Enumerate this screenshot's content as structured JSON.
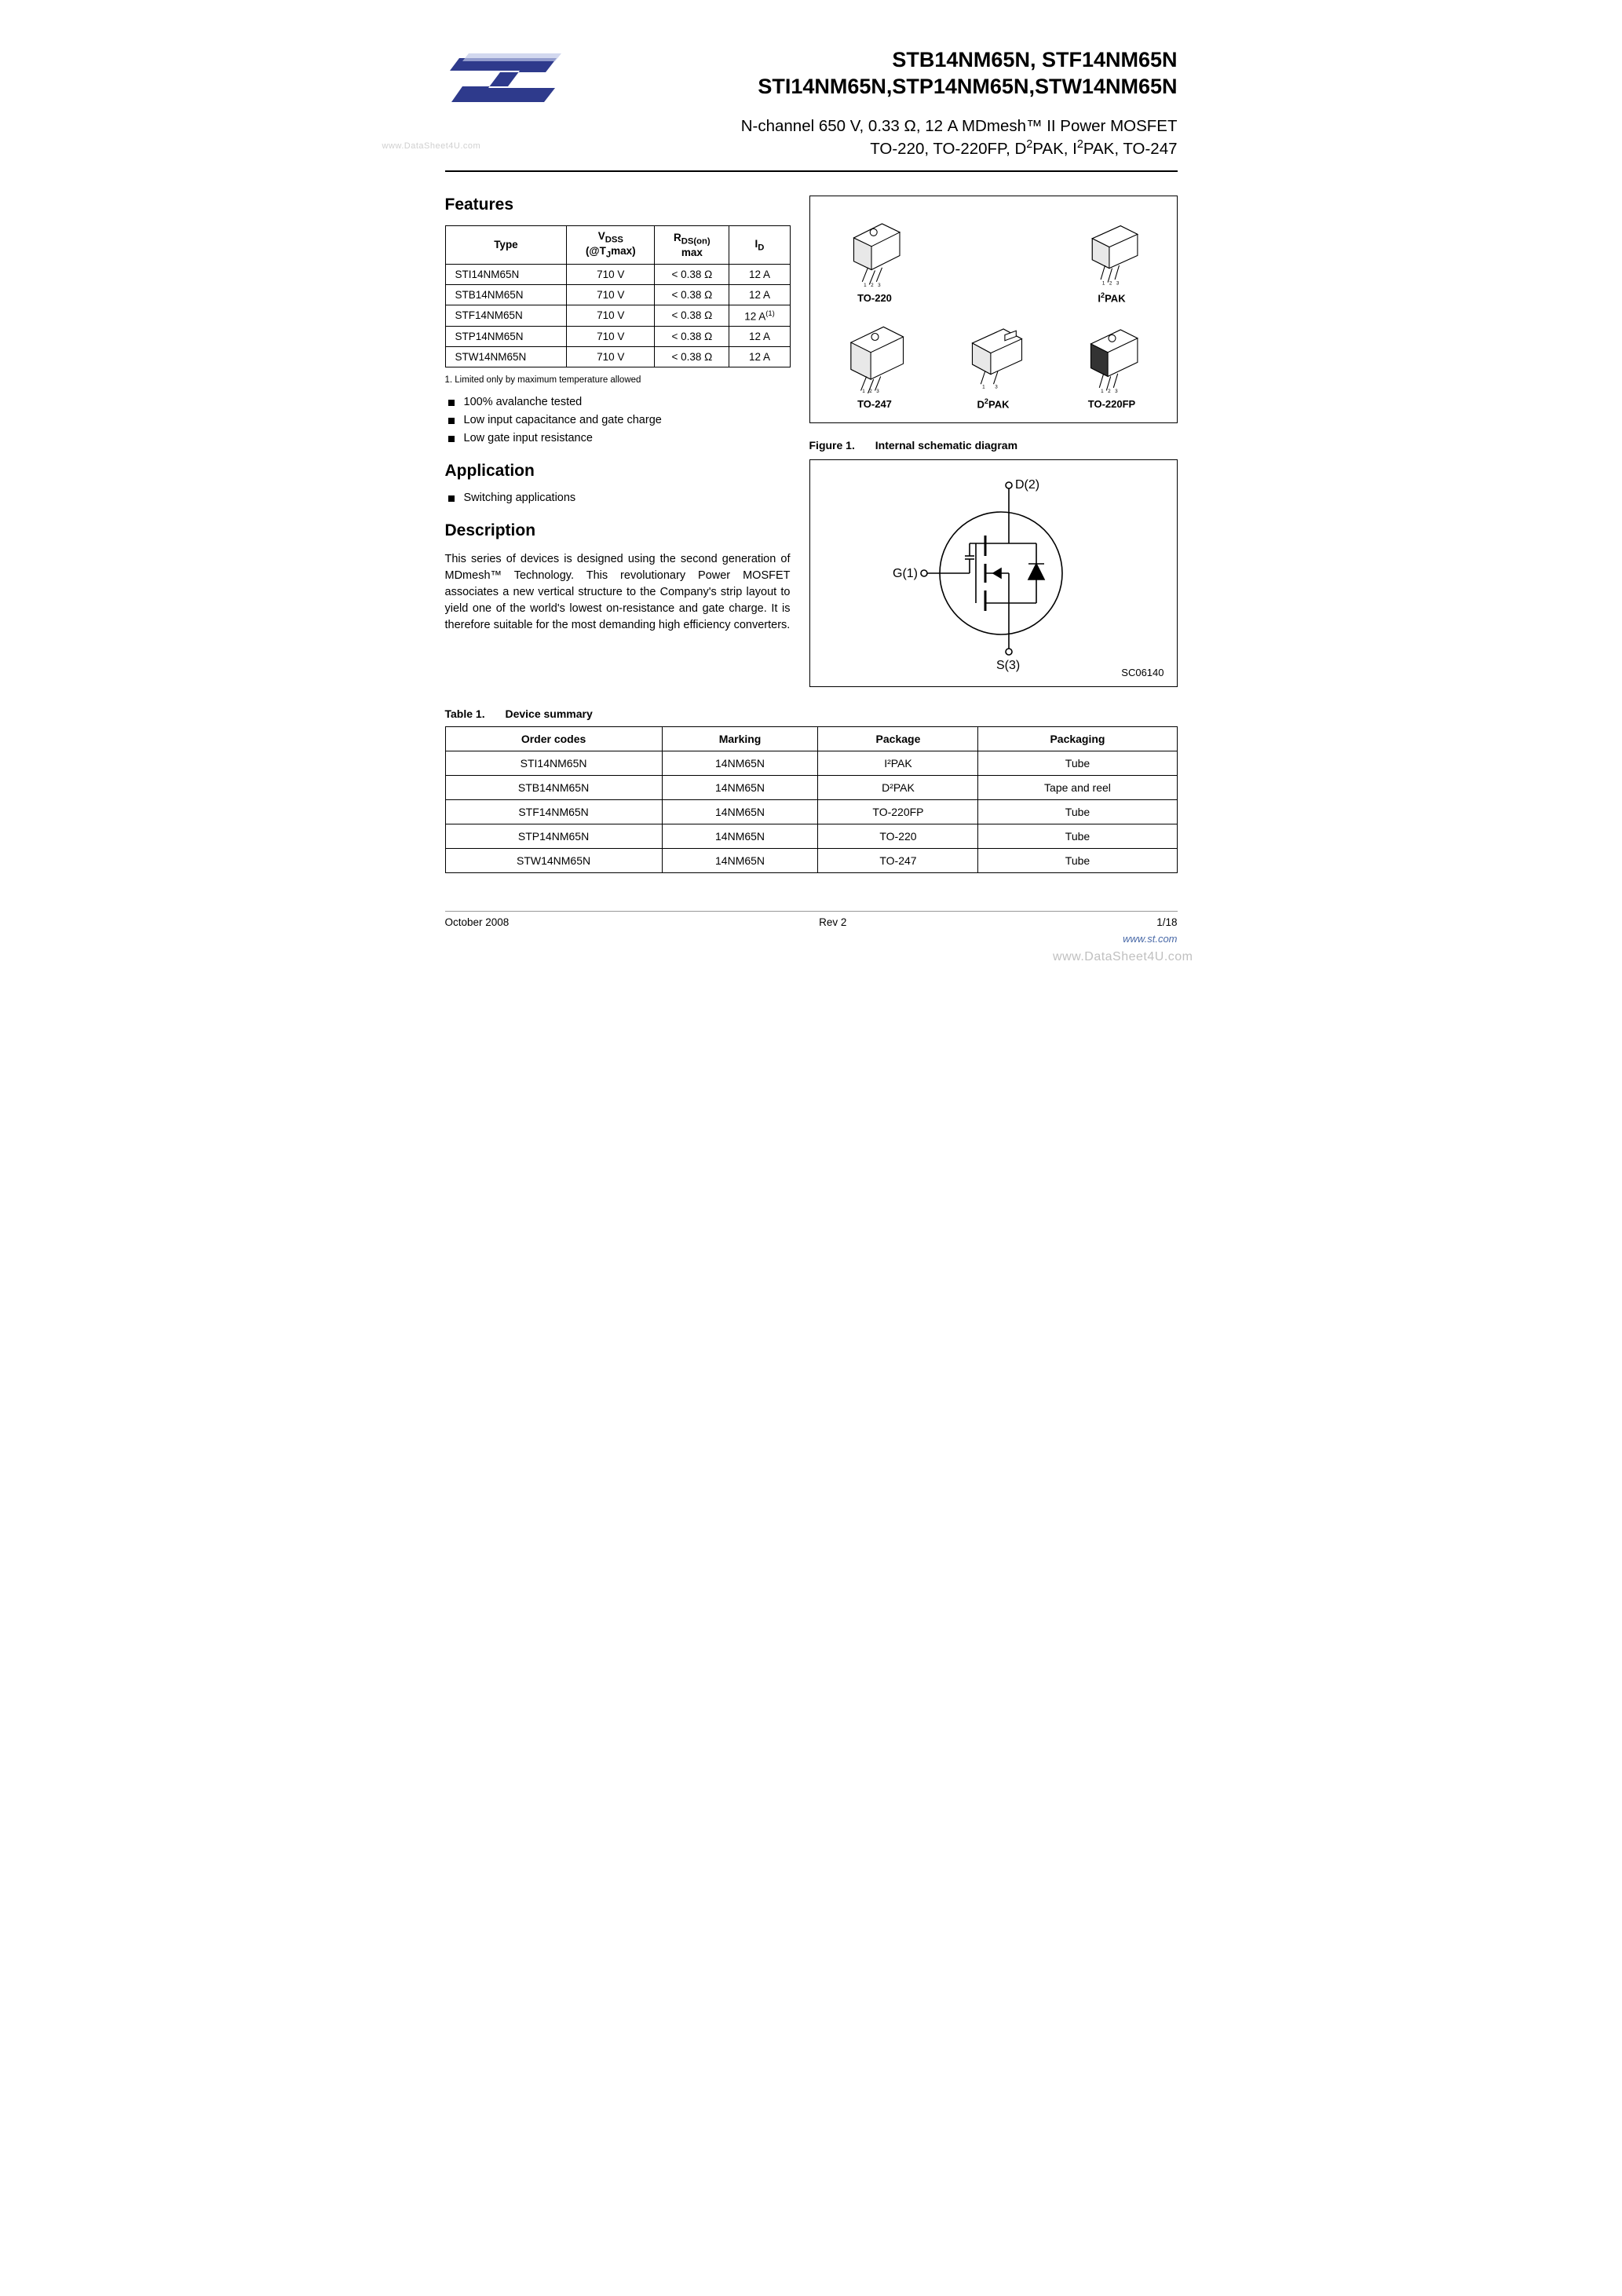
{
  "watermark_left": "www.DataSheet4U.com",
  "watermark_bottom": "www.DataSheet4U.com",
  "logo": {
    "bg_color": "#ffffff",
    "accent_color": "#2e3a8c",
    "text": ""
  },
  "header": {
    "title_line1": "STB14NM65N, STF14NM65N",
    "title_line2": "STI14NM65N,STP14NM65N,STW14NM65N",
    "subtitle_line1": "N-channel 650 V, 0.33 Ω, 12 A MDmesh™ II Power MOSFET",
    "subtitle_line2_prefix": "TO-220, TO-220FP, D",
    "subtitle_line2_sup1": "2",
    "subtitle_line2_mid": "PAK, I",
    "subtitle_line2_sup2": "2",
    "subtitle_line2_suffix": "PAK, TO-247"
  },
  "sections": {
    "features": "Features",
    "application": "Application",
    "description": "Description"
  },
  "features_table": {
    "headers": {
      "type": "Type",
      "vdss_html": "V<sub>DSS</sub><br>(@T<sub>J</sub>max)",
      "rds_html": "R<sub>DS(on)</sub><br>max",
      "id_html": "I<sub>D</sub>"
    },
    "rows": [
      {
        "type": "STI14NM65N",
        "vdss": "710 V",
        "rds": "< 0.38 Ω",
        "id": "12 A"
      },
      {
        "type": "STB14NM65N",
        "vdss": "710 V",
        "rds": "< 0.38 Ω",
        "id": "12 A"
      },
      {
        "type": "STF14NM65N",
        "vdss": "710 V",
        "rds": "< 0.38 Ω",
        "id_html": "12 A<sup>(1)</sup>"
      },
      {
        "type": "STP14NM65N",
        "vdss": "710 V",
        "rds": "< 0.38 Ω",
        "id": "12 A"
      },
      {
        "type": "STW14NM65N",
        "vdss": "710 V",
        "rds": "< 0.38 Ω",
        "id": "12 A"
      }
    ]
  },
  "footnote": "1.   Limited only by maximum temperature allowed",
  "feature_bullets": [
    "100% avalanche tested",
    "Low input capacitance and gate charge",
    "Low gate input resistance"
  ],
  "application_bullets": [
    "Switching applications"
  ],
  "description_text": "This series of devices is designed using the second generation of MDmesh™ Technology. This revolutionary Power MOSFET associates a new vertical structure to the Company's strip layout to yield one of the world's lowest on-resistance and gate charge. It is therefore suitable for the most demanding high efficiency converters.",
  "packages_figure": {
    "labels": {
      "to220": "TO-220",
      "i2pak_html": "I<sup>2</sup>PAK",
      "d2pak_html": "D<sup>2</sup>PAK",
      "to247": "TO-247",
      "to220fp": "TO-220FP"
    },
    "colors": {
      "stroke": "#000000",
      "fill": "#ffffff"
    }
  },
  "figure1": {
    "caption_num": "Figure 1.",
    "caption_text": "Internal schematic diagram",
    "labels": {
      "d": "D(2)",
      "g": "G(1)",
      "s": "S(3)"
    },
    "code": "SC06140",
    "colors": {
      "stroke": "#000000",
      "stroke_width": 1.6
    }
  },
  "table1": {
    "caption_num": "Table 1.",
    "caption_text": "Device summary",
    "headers": [
      "Order codes",
      "Marking",
      "Package",
      "Packaging"
    ],
    "rows": [
      [
        "STI14NM65N",
        "14NM65N",
        "I²PAK",
        "Tube"
      ],
      [
        "STB14NM65N",
        "14NM65N",
        "D²PAK",
        "Tape and reel"
      ],
      [
        "STF14NM65N",
        "14NM65N",
        "TO-220FP",
        "Tube"
      ],
      [
        "STP14NM65N",
        "14NM65N",
        "TO-220",
        "Tube"
      ],
      [
        "STW14NM65N",
        "14NM65N",
        "TO-247",
        "Tube"
      ]
    ]
  },
  "footer": {
    "date": "October 2008",
    "rev": "Rev 2",
    "page": "1/18",
    "link": "www.st.com"
  }
}
